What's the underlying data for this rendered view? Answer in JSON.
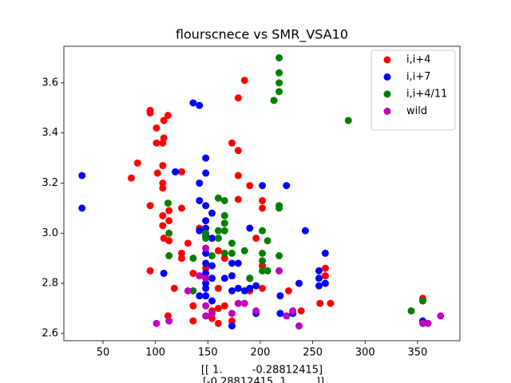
{
  "chart_data": {
    "type": "scatter",
    "title": "flourscnece vs SMR_VSA10",
    "xlabel_lines": [
      "[[ 1.         -0.28812415]",
      " [-0.28812415  1.        ]]"
    ],
    "xlim": [
      12.7,
      390.4
    ],
    "ylim": [
      2.571,
      3.746
    ],
    "xticks": [
      50,
      100,
      150,
      200,
      250,
      300,
      350
    ],
    "yticks": [
      2.6,
      2.8,
      {
        "value": 3,
        "label": "3.0"
      },
      3.2,
      3.4,
      3.6
    ],
    "legend": "upper right",
    "series": [
      {
        "name": "i,i+4",
        "color": "#ff0000",
        "x": [
          95,
          95,
          112,
          108,
          101,
          108,
          107,
          101,
          83,
          77,
          107,
          102,
          107,
          107,
          95,
          113,
          107,
          113,
          107,
          108,
          113,
          125,
          125,
          125,
          125,
          95,
          118,
          131,
          136,
          136,
          136,
          142,
          148,
          160,
          166,
          173,
          179,
          179,
          179,
          179,
          185,
          190,
          202,
          202,
          196,
          202,
          190,
          190,
          179,
          166,
          160,
          154,
          160,
          173,
          160,
          148,
          112,
          227,
          239,
          257,
          262,
          262,
          267,
          355,
          355,
          202,
          154,
          148
        ],
        "values": [
          3.49,
          3.48,
          3.47,
          3.45,
          3.42,
          3.38,
          3.36,
          3.36,
          3.28,
          3.22,
          3.27,
          3.24,
          3.2,
          3.18,
          3.11,
          3.09,
          3.07,
          3.05,
          3.03,
          2.98,
          2.97,
          3.245,
          3.1,
          2.92,
          2.9,
          2.85,
          2.78,
          2.96,
          2.84,
          2.71,
          2.65,
          3.02,
          2.99,
          2.93,
          2.9,
          3.36,
          3.54,
          3.33,
          3.23,
          3.135,
          3.61,
          3.19,
          3.13,
          3.1,
          2.98,
          2.87,
          2.82,
          2.77,
          2.72,
          2.71,
          2.7,
          2.69,
          2.64,
          2.65,
          2.78,
          2.86,
          2.67,
          2.77,
          2.69,
          2.72,
          2.83,
          2.86,
          2.72,
          2.74,
          2.73,
          2.78,
          2.66,
          2.75
        ]
      },
      {
        "name": "i,i+7",
        "color": "#0000ff",
        "x": [
          30,
          30,
          136,
          142,
          148,
          148,
          142,
          119,
          142,
          148,
          154,
          148,
          148,
          142,
          148,
          154,
          148,
          148,
          154,
          148,
          148,
          148,
          142,
          154,
          173,
          179,
          166,
          173,
          173,
          179,
          185,
          190,
          196,
          190,
          202,
          225,
          173,
          196,
          219,
          219,
          237,
          243,
          256,
          262,
          256,
          262,
          256,
          355,
          108,
          231,
          148,
          154
        ],
        "values": [
          3.23,
          3.1,
          3.52,
          3.51,
          3.3,
          3.24,
          3.2,
          3.245,
          3.13,
          3.11,
          3.08,
          3.05,
          3.02,
          3.01,
          2.99,
          2.98,
          2.92,
          2.88,
          2.87,
          2.84,
          2.8,
          2.78,
          2.75,
          2.82,
          2.88,
          2.88,
          2.82,
          2.83,
          2.77,
          2.78,
          2.77,
          2.78,
          2.79,
          3.02,
          3.19,
          3.19,
          2.63,
          2.68,
          2.75,
          2.68,
          2.8,
          3.01,
          2.85,
          2.92,
          2.82,
          2.8,
          2.79,
          2.65,
          2.84,
          2.68,
          2.75,
          2.73
        ]
      },
      {
        "name": "i,i+4/11",
        "color": "#008000",
        "x": [
          218,
          218,
          218,
          218,
          213,
          284,
          112,
          160,
          166,
          166,
          166,
          166,
          160,
          160,
          148,
          148,
          154,
          136,
          166,
          173,
          173,
          185,
          202,
          207,
          202,
          202,
          202,
          207,
          190,
          218,
          218,
          218,
          136,
          113,
          113,
          344,
          355
        ],
        "values": [
          3.7,
          3.64,
          3.6,
          3.565,
          3.53,
          3.45,
          3.12,
          3.14,
          3.13,
          3.07,
          3.04,
          3.01,
          3.01,
          2.98,
          3.0,
          2.98,
          2.91,
          2.9,
          2.92,
          2.92,
          2.96,
          2.93,
          3.01,
          2.97,
          2.92,
          2.89,
          2.85,
          2.85,
          2.82,
          3.11,
          3.1,
          2.91,
          2.77,
          2.91,
          3.0,
          2.69,
          2.73
        ]
      },
      {
        "name": "wild",
        "color": "#bf00bf",
        "x": [
          101,
          113,
          131,
          142,
          148,
          148,
          148,
          148,
          154,
          173,
          179,
          185,
          196,
          218,
          225,
          231,
          237,
          355,
          360,
          372
        ],
        "values": [
          2.64,
          2.65,
          2.77,
          2.83,
          2.82,
          2.94,
          2.71,
          2.67,
          2.68,
          2.68,
          2.72,
          2.72,
          2.69,
          2.85,
          2.67,
          2.69,
          2.63,
          2.64,
          2.64,
          2.67
        ]
      }
    ]
  }
}
